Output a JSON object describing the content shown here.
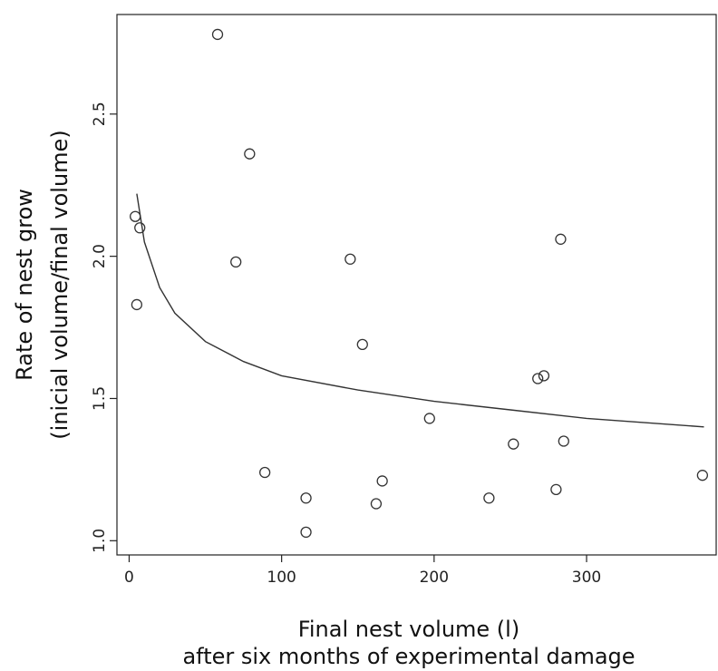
{
  "chart_data": {
    "type": "scatter",
    "xlabel": "Final nest volume (l)",
    "xlabel_line2": "after six months of experimental damage",
    "ylabel": "Rate of nest grow",
    "ylabel_line2": "(inicial volume/final volume)",
    "xlim": [
      -8,
      385
    ],
    "ylim": [
      0.95,
      2.85
    ],
    "x_ticks": [
      0,
      100,
      200,
      300
    ],
    "y_ticks": [
      1.0,
      1.5,
      2.0,
      2.5
    ],
    "x_tick_labels": [
      "0",
      "100",
      "200",
      "300"
    ],
    "y_tick_labels": [
      "1.0",
      "1.5",
      "2.0",
      "2.5"
    ],
    "grid": false,
    "points": [
      {
        "x": 58,
        "y": 2.78
      },
      {
        "x": 79,
        "y": 2.36
      },
      {
        "x": 4,
        "y": 2.14
      },
      {
        "x": 7,
        "y": 2.1
      },
      {
        "x": 5,
        "y": 1.83
      },
      {
        "x": 70,
        "y": 1.98
      },
      {
        "x": 145,
        "y": 1.99
      },
      {
        "x": 283,
        "y": 2.06
      },
      {
        "x": 153,
        "y": 1.69
      },
      {
        "x": 268,
        "y": 1.57
      },
      {
        "x": 272,
        "y": 1.58
      },
      {
        "x": 197,
        "y": 1.43
      },
      {
        "x": 252,
        "y": 1.34
      },
      {
        "x": 285,
        "y": 1.35
      },
      {
        "x": 89,
        "y": 1.24
      },
      {
        "x": 166,
        "y": 1.21
      },
      {
        "x": 376,
        "y": 1.23
      },
      {
        "x": 116,
        "y": 1.15
      },
      {
        "x": 162,
        "y": 1.13
      },
      {
        "x": 236,
        "y": 1.15
      },
      {
        "x": 280,
        "y": 1.18
      },
      {
        "x": 116,
        "y": 1.03
      }
    ],
    "fit_curve": [
      {
        "x": 5,
        "y": 2.22
      },
      {
        "x": 10,
        "y": 2.05
      },
      {
        "x": 20,
        "y": 1.89
      },
      {
        "x": 30,
        "y": 1.8
      },
      {
        "x": 50,
        "y": 1.7
      },
      {
        "x": 75,
        "y": 1.63
      },
      {
        "x": 100,
        "y": 1.58
      },
      {
        "x": 150,
        "y": 1.53
      },
      {
        "x": 200,
        "y": 1.49
      },
      {
        "x": 250,
        "y": 1.46
      },
      {
        "x": 300,
        "y": 1.43
      },
      {
        "x": 377,
        "y": 1.4
      }
    ]
  }
}
